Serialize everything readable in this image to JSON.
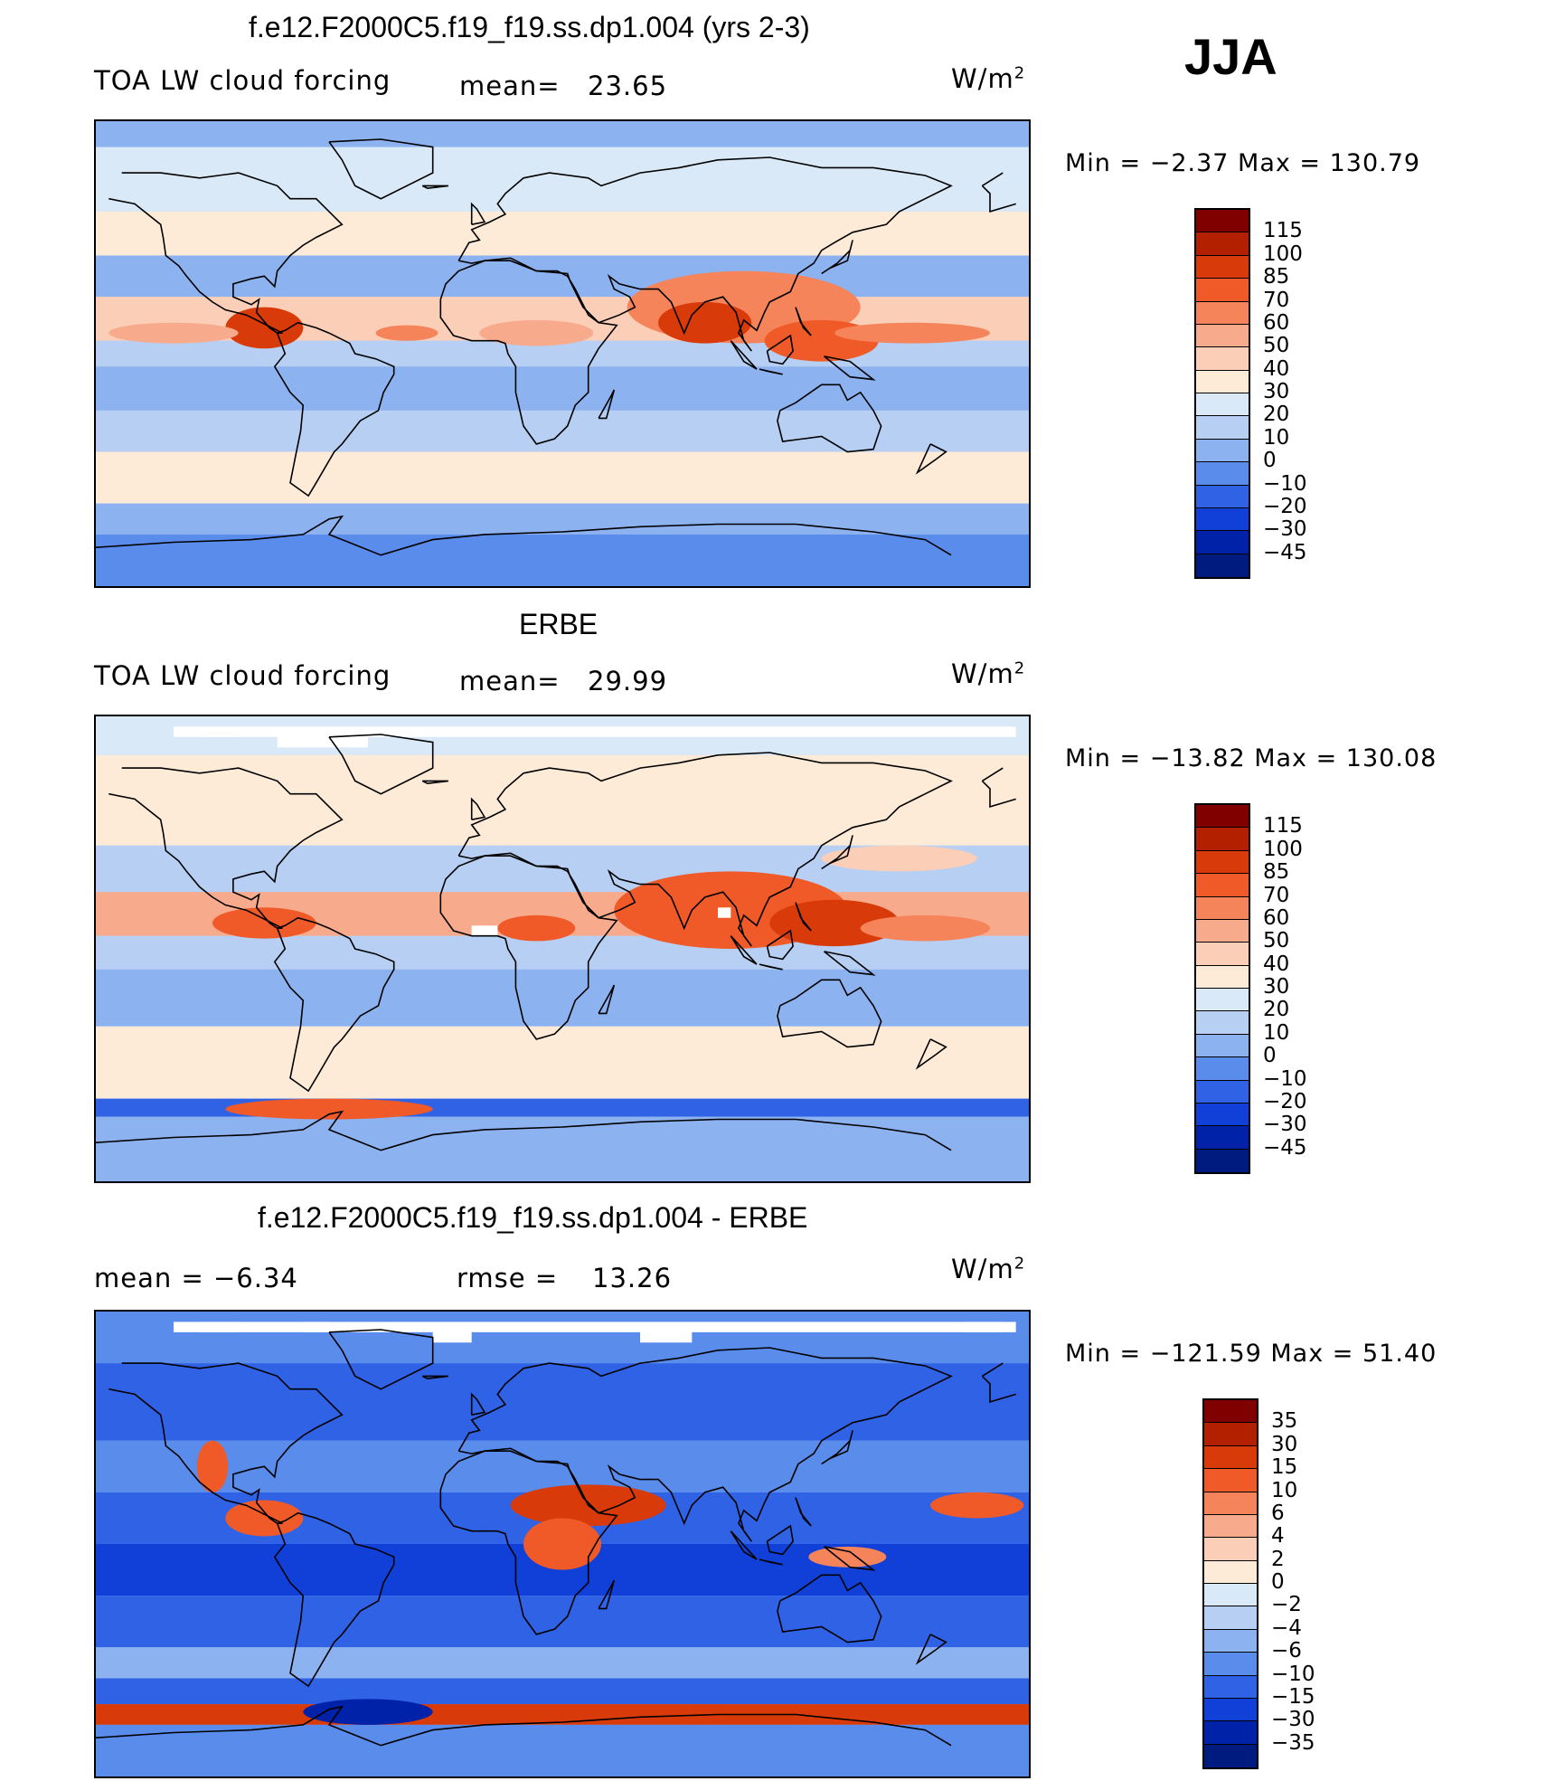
{
  "season": "JJA",
  "panels": [
    {
      "id": "model",
      "title": "f.e12.F2000C5.f19_f19.ss.dp1.004 (yrs 2-3)",
      "left_label": "TOA LW cloud forcing",
      "mean_label": "mean=",
      "mean_value": "23.65",
      "units": "W/m",
      "units_sup": "2",
      "minmax": "Min =   −2.37 Max = 130.79",
      "colorbar_labels": [
        "115",
        "100",
        "85",
        "70",
        "60",
        "50",
        "40",
        "30",
        "20",
        "10",
        "0",
        "−10",
        "−20",
        "−30",
        "−45"
      ]
    },
    {
      "id": "obs",
      "title": "ERBE",
      "left_label": "TOA LW cloud forcing",
      "mean_label": "mean=",
      "mean_value": "29.99",
      "units": "W/m",
      "units_sup": "2",
      "minmax": "Min = −13.82 Max = 130.08",
      "colorbar_labels": [
        "115",
        "100",
        "85",
        "70",
        "60",
        "50",
        "40",
        "30",
        "20",
        "10",
        "0",
        "−10",
        "−20",
        "−30",
        "−45"
      ]
    },
    {
      "id": "diff",
      "title": "f.e12.F2000C5.f19_f19.ss.dp1.004 - ERBE",
      "left_label": "mean =   −6.34",
      "mean_label": "rmse =",
      "mean_value": "13.26",
      "units": "W/m",
      "units_sup": "2",
      "minmax": "Min = −121.59 Max =   51.40",
      "colorbar_labels": [
        "35",
        "30",
        "15",
        "10",
        "6",
        "4",
        "2",
        "0",
        "−2",
        "−4",
        "−6",
        "−10",
        "−15",
        "−30",
        "−35"
      ]
    }
  ],
  "colors": {
    "scale": [
      "#800000",
      "#b22000",
      "#d83a0a",
      "#f05a28",
      "#f5845a",
      "#f8ab8c",
      "#fbcfb7",
      "#fdebd8",
      "#d9e9f8",
      "#b6cff3",
      "#8db2f0",
      "#5a8cec",
      "#3062e5",
      "#1040d8",
      "#0022a8",
      "#001b80"
    ],
    "ocean_base": "#b6cff3",
    "coastline": "#000000"
  },
  "field_bands": {
    "model": [
      {
        "lat": [
          80,
          90
        ],
        "color": "#8db2f0"
      },
      {
        "lat": [
          55,
          80
        ],
        "color": "#d9e9f8"
      },
      {
        "lat": [
          38,
          55
        ],
        "color": "#fdebd8"
      },
      {
        "lat": [
          22,
          38
        ],
        "color": "#8db2f0"
      },
      {
        "lat": [
          5,
          22
        ],
        "color": "#fbcfb7"
      },
      {
        "lat": [
          -5,
          5
        ],
        "color": "#b6cff3"
      },
      {
        "lat": [
          -22,
          -5
        ],
        "color": "#8db2f0"
      },
      {
        "lat": [
          -38,
          -22
        ],
        "color": "#b6cff3"
      },
      {
        "lat": [
          -58,
          -38
        ],
        "color": "#fdebd8"
      },
      {
        "lat": [
          -70,
          -58
        ],
        "color": "#8db2f0"
      },
      {
        "lat": [
          -90,
          -70
        ],
        "color": "#5a8cec"
      }
    ],
    "obs": [
      {
        "lat": [
          75,
          90
        ],
        "color": "#d9e9f8"
      },
      {
        "lat": [
          40,
          75
        ],
        "color": "#fdebd8"
      },
      {
        "lat": [
          22,
          40
        ],
        "color": "#b6cff3"
      },
      {
        "lat": [
          5,
          22
        ],
        "color": "#f8ab8c"
      },
      {
        "lat": [
          -8,
          5
        ],
        "color": "#b6cff3"
      },
      {
        "lat": [
          -30,
          -8
        ],
        "color": "#8db2f0"
      },
      {
        "lat": [
          -58,
          -30
        ],
        "color": "#fdebd8"
      },
      {
        "lat": [
          -65,
          -58
        ],
        "color": "#3062e5"
      },
      {
        "lat": [
          -90,
          -65
        ],
        "color": "#8db2f0"
      }
    ],
    "diff": [
      {
        "lat": [
          70,
          90
        ],
        "color": "#5a8cec"
      },
      {
        "lat": [
          40,
          70
        ],
        "color": "#3062e5"
      },
      {
        "lat": [
          20,
          40
        ],
        "color": "#5a8cec"
      },
      {
        "lat": [
          0,
          20
        ],
        "color": "#3062e5"
      },
      {
        "lat": [
          -20,
          0
        ],
        "color": "#1040d8"
      },
      {
        "lat": [
          -40,
          -20
        ],
        "color": "#3062e5"
      },
      {
        "lat": [
          -52,
          -40
        ],
        "color": "#8db2f0"
      },
      {
        "lat": [
          -62,
          -52
        ],
        "color": "#3062e5"
      },
      {
        "lat": [
          -70,
          -62
        ],
        "color": "#d83a0a"
      },
      {
        "lat": [
          -90,
          -70
        ],
        "color": "#5a8cec"
      }
    ]
  },
  "field_blobs": {
    "model": [
      {
        "lon": 100,
        "lat": 18,
        "rlon": 45,
        "rlat": 14,
        "color": "#f5845a"
      },
      {
        "lon": 85,
        "lat": 12,
        "rlon": 18,
        "rlat": 8,
        "color": "#d83a0a"
      },
      {
        "lon": 130,
        "lat": 5,
        "rlon": 22,
        "rlat": 8,
        "color": "#f05a28"
      },
      {
        "lon": 165,
        "lat": 8,
        "rlon": 30,
        "rlat": 4,
        "color": "#f5845a"
      },
      {
        "lon": -85,
        "lat": 10,
        "rlon": 15,
        "rlat": 8,
        "color": "#d83a0a"
      },
      {
        "lon": -120,
        "lat": 8,
        "rlon": 25,
        "rlat": 4,
        "color": "#f8ab8c"
      },
      {
        "lon": 20,
        "lat": 8,
        "rlon": 22,
        "rlat": 5,
        "color": "#f8ab8c"
      },
      {
        "lon": -30,
        "lat": 8,
        "rlon": 12,
        "rlat": 3,
        "color": "#f5845a"
      }
    ],
    "obs": [
      {
        "lon": 95,
        "lat": 15,
        "rlon": 45,
        "rlat": 15,
        "color": "#f05a28"
      },
      {
        "lon": 135,
        "lat": 10,
        "rlon": 25,
        "rlat": 9,
        "color": "#d83a0a"
      },
      {
        "lon": 170,
        "lat": 8,
        "rlon": 25,
        "rlat": 5,
        "color": "#f5845a"
      },
      {
        "lon": -85,
        "lat": 10,
        "rlon": 20,
        "rlat": 6,
        "color": "#f05a28"
      },
      {
        "lon": 20,
        "lat": 8,
        "rlon": 15,
        "rlat": 5,
        "color": "#f05a28"
      },
      {
        "lon": -60,
        "lat": -62,
        "rlon": 40,
        "rlat": 4,
        "color": "#f05a28"
      },
      {
        "lon": 160,
        "lat": 35,
        "rlon": 30,
        "rlat": 5,
        "color": "#fbcfb7"
      }
    ],
    "diff": [
      {
        "lon": 40,
        "lat": 15,
        "rlon": 30,
        "rlat": 8,
        "color": "#d83a0a"
      },
      {
        "lon": 30,
        "lat": 0,
        "rlon": 15,
        "rlat": 10,
        "color": "#f05a28"
      },
      {
        "lon": -85,
        "lat": 10,
        "rlon": 15,
        "rlat": 7,
        "color": "#f05a28"
      },
      {
        "lon": -105,
        "lat": 30,
        "rlon": 6,
        "rlat": 10,
        "color": "#f05a28"
      },
      {
        "lon": 140,
        "lat": -5,
        "rlon": 15,
        "rlat": 4,
        "color": "#f5845a"
      },
      {
        "lon": -170,
        "lat": 15,
        "rlon": 18,
        "rlat": 5,
        "color": "#f05a28"
      },
      {
        "lon": -45,
        "lat": -65,
        "rlon": 25,
        "rlat": 5,
        "color": "#0022a8"
      }
    ]
  },
  "coastlines": [
    [
      [
        -168,
        65
      ],
      [
        -160,
        70
      ],
      [
        -140,
        70
      ],
      [
        -125,
        70
      ],
      [
        -110,
        68
      ],
      [
        -95,
        70
      ],
      [
        -80,
        65
      ],
      [
        -75,
        60
      ],
      [
        -65,
        60
      ],
      [
        -60,
        55
      ],
      [
        -55,
        50
      ],
      [
        -65,
        45
      ],
      [
        -70,
        42
      ],
      [
        -75,
        38
      ],
      [
        -80,
        32
      ],
      [
        -81,
        26
      ],
      [
        -85,
        30
      ],
      [
        -90,
        29
      ],
      [
        -97,
        27
      ],
      [
        -97,
        22
      ],
      [
        -90,
        19
      ],
      [
        -87,
        21
      ],
      [
        -88,
        16
      ],
      [
        -83,
        10
      ],
      [
        -80,
        8
      ],
      [
        -78,
        8
      ],
      [
        -86,
        12
      ],
      [
        -92,
        15
      ],
      [
        -100,
        17
      ],
      [
        -105,
        20
      ],
      [
        -110,
        24
      ],
      [
        -115,
        30
      ],
      [
        -118,
        34
      ],
      [
        -123,
        38
      ],
      [
        -124,
        45
      ],
      [
        -125,
        50
      ],
      [
        -135,
        58
      ],
      [
        -145,
        60
      ],
      [
        -155,
        58
      ],
      [
        -165,
        55
      ],
      [
        -165,
        62
      ],
      [
        -168,
        65
      ]
    ],
    [
      [
        -80,
        8
      ],
      [
        -77,
        0
      ],
      [
        -81,
        -5
      ],
      [
        -75,
        -15
      ],
      [
        -70,
        -20
      ],
      [
        -71,
        -30
      ],
      [
        -73,
        -40
      ],
      [
        -75,
        -50
      ],
      [
        -68,
        -55
      ],
      [
        -65,
        -50
      ],
      [
        -58,
        -38
      ],
      [
        -55,
        -35
      ],
      [
        -48,
        -26
      ],
      [
        -41,
        -22
      ],
      [
        -39,
        -15
      ],
      [
        -35,
        -8
      ],
      [
        -35,
        -5
      ],
      [
        -42,
        -2
      ],
      [
        -50,
        0
      ],
      [
        -52,
        4
      ],
      [
        -60,
        8
      ],
      [
        -65,
        10
      ],
      [
        -72,
        12
      ],
      [
        -77,
        9
      ],
      [
        -80,
        8
      ]
    ],
    [
      [
        -10,
        36
      ],
      [
        -6,
        43
      ],
      [
        -2,
        44
      ],
      [
        -5,
        48
      ],
      [
        2,
        51
      ],
      [
        8,
        54
      ],
      [
        5,
        58
      ],
      [
        8,
        62
      ],
      [
        15,
        68
      ],
      [
        25,
        70
      ],
      [
        40,
        68
      ],
      [
        45,
        65
      ],
      [
        60,
        70
      ],
      [
        75,
        72
      ],
      [
        90,
        75
      ],
      [
        110,
        76
      ],
      [
        130,
        72
      ],
      [
        150,
        72
      ],
      [
        170,
        69
      ],
      [
        180,
        65
      ],
      [
        170,
        60
      ],
      [
        160,
        55
      ],
      [
        155,
        50
      ],
      [
        142,
        47
      ],
      [
        135,
        43
      ],
      [
        130,
        40
      ],
      [
        127,
        35
      ],
      [
        121,
        31
      ],
      [
        118,
        24
      ],
      [
        110,
        20
      ],
      [
        108,
        16
      ],
      [
        105,
        9
      ],
      [
        100,
        13
      ],
      [
        98,
        8
      ],
      [
        103,
        1
      ],
      [
        100,
        5
      ],
      [
        97,
        16
      ],
      [
        92,
        22
      ],
      [
        85,
        20
      ],
      [
        80,
        15
      ],
      [
        77,
        8
      ],
      [
        72,
        20
      ],
      [
        67,
        25
      ],
      [
        60,
        25
      ],
      [
        56,
        26
      ],
      [
        52,
        27
      ],
      [
        48,
        30
      ],
      [
        50,
        25
      ],
      [
        56,
        22
      ],
      [
        58,
        18
      ],
      [
        52,
        15
      ],
      [
        44,
        12
      ],
      [
        40,
        15
      ],
      [
        35,
        25
      ],
      [
        32,
        30
      ],
      [
        28,
        32
      ],
      [
        20,
        32
      ],
      [
        10,
        36
      ],
      [
        0,
        36
      ],
      [
        -5,
        35
      ],
      [
        -10,
        36
      ]
    ],
    [
      [
        -17,
        21
      ],
      [
        -17,
        14
      ],
      [
        -12,
        7
      ],
      [
        -5,
        5
      ],
      [
        5,
        5
      ],
      [
        8,
        4
      ],
      [
        9,
        0
      ],
      [
        12,
        -5
      ],
      [
        12,
        -15
      ],
      [
        15,
        -28
      ],
      [
        20,
        -35
      ],
      [
        27,
        -33
      ],
      [
        32,
        -28
      ],
      [
        35,
        -20
      ],
      [
        40,
        -15
      ],
      [
        40,
        -5
      ],
      [
        44,
        2
      ],
      [
        51,
        11
      ],
      [
        44,
        12
      ],
      [
        38,
        18
      ],
      [
        33,
        28
      ],
      [
        32,
        31
      ],
      [
        20,
        32
      ],
      [
        10,
        37
      ],
      [
        0,
        36
      ],
      [
        -10,
        32
      ],
      [
        -15,
        27
      ],
      [
        -17,
        21
      ]
    ],
    [
      [
        114,
        -22
      ],
      [
        120,
        -19
      ],
      [
        130,
        -12
      ],
      [
        137,
        -12
      ],
      [
        140,
        -18
      ],
      [
        145,
        -15
      ],
      [
        150,
        -22
      ],
      [
        153,
        -28
      ],
      [
        150,
        -37
      ],
      [
        140,
        -38
      ],
      [
        135,
        -35
      ],
      [
        130,
        -32
      ],
      [
        115,
        -34
      ],
      [
        113,
        -26
      ],
      [
        114,
        -22
      ]
    ],
    [
      [
        44,
        -25
      ],
      [
        49,
        -16
      ],
      [
        50,
        -14
      ],
      [
        47,
        -25
      ],
      [
        44,
        -25
      ]
    ],
    [
      [
        95,
        5
      ],
      [
        105,
        -6
      ],
      [
        100,
        -3
      ],
      [
        95,
        5
      ]
    ],
    [
      [
        110,
        -7
      ],
      [
        115,
        -8
      ],
      [
        106,
        -6
      ],
      [
        110,
        -7
      ]
    ],
    [
      [
        109,
        1
      ],
      [
        118,
        7
      ],
      [
        119,
        1
      ],
      [
        115,
        -4
      ],
      [
        110,
        -3
      ],
      [
        109,
        1
      ]
    ],
    [
      [
        131,
        -1
      ],
      [
        141,
        -3
      ],
      [
        150,
        -10
      ],
      [
        141,
        -9
      ],
      [
        131,
        -1
      ]
    ],
    [
      [
        130,
        31
      ],
      [
        136,
        35
      ],
      [
        141,
        40
      ],
      [
        142,
        44
      ],
      [
        140,
        36
      ],
      [
        133,
        33
      ],
      [
        130,
        31
      ]
    ],
    [
      [
        120,
        18
      ],
      [
        122,
        12
      ],
      [
        126,
        7
      ],
      [
        123,
        10
      ],
      [
        120,
        18
      ]
    ],
    [
      [
        -5,
        50
      ],
      [
        0,
        51
      ],
      [
        -3,
        56
      ],
      [
        -5,
        58
      ],
      [
        -5,
        50
      ]
    ],
    [
      [
        -24,
        65
      ],
      [
        -14,
        65
      ],
      [
        -22,
        64
      ],
      [
        -24,
        65
      ]
    ],
    [
      [
        -60,
        82
      ],
      [
        -40,
        83
      ],
      [
        -20,
        80
      ],
      [
        -20,
        70
      ],
      [
        -40,
        60
      ],
      [
        -50,
        65
      ],
      [
        -55,
        75
      ],
      [
        -60,
        82
      ]
    ],
    [
      [
        -180,
        -70
      ],
      [
        -150,
        -75
      ],
      [
        -120,
        -73
      ],
      [
        -90,
        -72
      ],
      [
        -70,
        -70
      ],
      [
        -60,
        -64
      ],
      [
        -55,
        -63
      ],
      [
        -60,
        -70
      ],
      [
        -40,
        -78
      ],
      [
        -20,
        -72
      ],
      [
        0,
        -70
      ],
      [
        30,
        -69
      ],
      [
        60,
        -67
      ],
      [
        90,
        -66
      ],
      [
        120,
        -66
      ],
      [
        150,
        -69
      ],
      [
        170,
        -72
      ],
      [
        180,
        -78
      ]
    ],
    [
      [
        172,
        -35
      ],
      [
        178,
        -38
      ],
      [
        174,
        -41
      ],
      [
        167,
        -46
      ],
      [
        172,
        -35
      ]
    ]
  ],
  "missing_patches": {
    "model": [],
    "obs": [
      {
        "lon": [
          -155,
          -120
        ],
        "lat": [
          82,
          86
        ]
      },
      {
        "lon": [
          -110,
          -95
        ],
        "lat": [
          82,
          86
        ]
      },
      {
        "lon": [
          -80,
          -45
        ],
        "lat": [
          78,
          83
        ]
      },
      {
        "lon": [
          -5,
          5
        ],
        "lat": [
          5,
          9
        ]
      },
      {
        "lon": [
          90,
          95
        ],
        "lat": [
          12,
          16
        ]
      }
    ],
    "diff": [
      {
        "lon": [
          -175,
          -160
        ],
        "lat": [
          82,
          86
        ]
      },
      {
        "lon": [
          -155,
          -120
        ],
        "lat": [
          82,
          86
        ]
      },
      {
        "lon": [
          -110,
          -95
        ],
        "lat": [
          82,
          86
        ]
      },
      {
        "lon": [
          -70,
          -60
        ],
        "lat": [
          82,
          86
        ]
      },
      {
        "lon": [
          -20,
          -5
        ],
        "lat": [
          78,
          83
        ]
      },
      {
        "lon": [
          60,
          80
        ],
        "lat": [
          78,
          83
        ]
      }
    ]
  }
}
